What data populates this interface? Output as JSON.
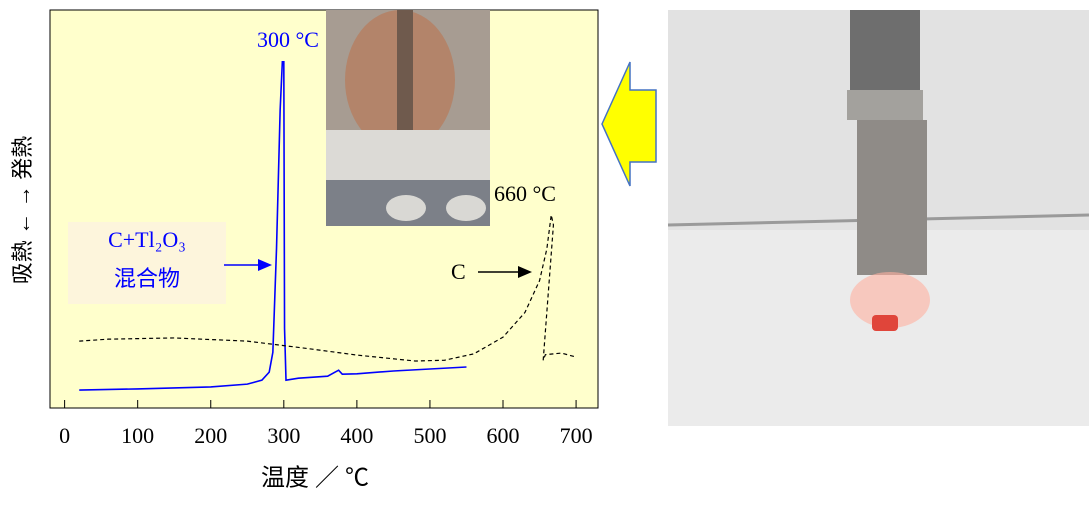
{
  "chart_data": {
    "type": "line",
    "x_label": "温度 ／ ℃",
    "y_label": "吸熱 ← → 発熱",
    "annotations": [
      "300 °C",
      "660 °C",
      "C+Tl₂O₃",
      "混合物",
      "C"
    ],
    "xlim": [
      -20,
      730
    ],
    "ylim": [
      0,
      100
    ],
    "xticks": [
      0,
      100,
      200,
      300,
      400,
      500,
      600,
      700
    ],
    "series": [
      {
        "color": "#0000ff",
        "dashed": false,
        "x": [
          20,
          100,
          200,
          250,
          270,
          280,
          285,
          290,
          295,
          298,
          300,
          301,
          303,
          320,
          360,
          370,
          375,
          380,
          400,
          450,
          500,
          550
        ],
        "values": [
          4.5,
          4.8,
          5.3,
          6,
          7,
          9,
          14,
          40,
          75,
          87,
          87,
          20,
          7,
          7.5,
          8,
          9,
          9.5,
          8.5,
          8.6,
          9.3,
          9.8,
          10.3
        ]
      },
      {
        "color": "#000000",
        "dashed": true,
        "x": [
          20,
          60,
          150,
          250,
          330,
          400,
          480,
          520,
          560,
          600,
          630,
          650,
          660,
          666,
          669,
          655,
          658,
          680,
          700
        ],
        "values": [
          16.8,
          17.3,
          17.6,
          16.8,
          15,
          13.3,
          11.8,
          12,
          13.6,
          17.8,
          24,
          32,
          40,
          48.5,
          46,
          12,
          13.4,
          13.8,
          12.8
        ]
      }
    ]
  }
}
